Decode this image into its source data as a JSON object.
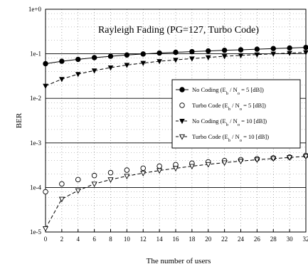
{
  "chart_data": {
    "type": "line",
    "title": "Rayleigh Fading (PG=127, Turbo Code)",
    "xlabel": "The number of users",
    "ylabel": "BER",
    "xlim": [
      0,
      32
    ],
    "ylim_log10": [
      -5,
      0
    ],
    "y_scale": "log",
    "x_ticks": [
      "0",
      "2",
      "4",
      "6",
      "8",
      "10",
      "12",
      "14",
      "16",
      "18",
      "20",
      "22",
      "24",
      "26",
      "28",
      "30",
      "32"
    ],
    "y_ticks": [
      "1e-5",
      "1e-4",
      "1e-3",
      "1e-2",
      "1e-1",
      "1e+0"
    ],
    "grid": "dotted",
    "legend_position": "right",
    "x": [
      0,
      2,
      4,
      6,
      8,
      10,
      12,
      14,
      16,
      18,
      20,
      22,
      24,
      26,
      28,
      30,
      32
    ],
    "series": [
      {
        "name": "No Coding (Eb / No = 5 [dB])",
        "label_parts": {
          "pre": "No Coding (E",
          "sub1": "b",
          "mid": " / N",
          "sub2": "o",
          "post": " = 5 [dB])"
        },
        "marker": "filled-circle",
        "line": "solid",
        "values": [
          0.06,
          0.068,
          0.075,
          0.082,
          0.088,
          0.094,
          0.099,
          0.104,
          0.108,
          0.112,
          0.116,
          0.12,
          0.123,
          0.127,
          0.131,
          0.135,
          0.139
        ]
      },
      {
        "name": "Turbo Code (Eb / No = 5 [dB])",
        "label_parts": {
          "pre": "Turbo Code (E",
          "sub1": "b",
          "mid": " / N",
          "sub2": "o",
          "post": " = 5 [dB])"
        },
        "marker": "open-circle",
        "line": "none",
        "values": [
          8e-05,
          0.00012,
          0.00015,
          0.000185,
          0.000215,
          0.000245,
          0.00027,
          0.0003,
          0.000325,
          0.00035,
          0.000375,
          0.0004,
          0.00042,
          0.00044,
          0.00046,
          0.00048,
          0.00052
        ]
      },
      {
        "name": "No Coding (Eb / No = 10 [dB])",
        "label_parts": {
          "pre": "No Coding (E",
          "sub1": "b",
          "mid": " / N",
          "sub2": "o",
          "post": " = 10 [dB])"
        },
        "marker": "filled-triangle-down",
        "line": "dashed",
        "values": [
          0.019,
          0.027,
          0.035,
          0.042,
          0.049,
          0.056,
          0.062,
          0.068,
          0.073,
          0.078,
          0.083,
          0.088,
          0.092,
          0.096,
          0.1,
          0.104,
          0.108
        ]
      },
      {
        "name": "Turbo Code (Eb / No = 10 [dB])",
        "label_parts": {
          "pre": "Turbo Code (E",
          "sub1": "b",
          "mid": " / N",
          "sub2": "o",
          "post": " = 10 [dB])"
        },
        "marker": "open-triangle-down",
        "line": "dashed",
        "values": [
          1.2e-05,
          5.5e-05,
          8.5e-05,
          0.00012,
          0.00015,
          0.00018,
          0.00021,
          0.00024,
          0.00027,
          0.0003,
          0.00033,
          0.00036,
          0.00039,
          0.00042,
          0.000445,
          0.00047,
          0.0005
        ]
      }
    ]
  }
}
